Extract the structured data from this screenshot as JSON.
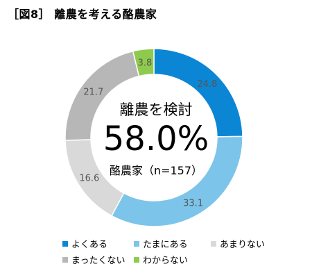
{
  "title": "［図8］ 離農を考える酪農家",
  "center": {
    "label": "離農を検討",
    "value": "58.0%",
    "sublabel": "酪農家（n=157）"
  },
  "chart_data": {
    "type": "pie",
    "donut": true,
    "categories": [
      "よくある",
      "たまにある",
      "あまりない",
      "まったくない",
      "わからない"
    ],
    "values": [
      24.8,
      33.1,
      16.6,
      21.7,
      3.8
    ],
    "colors": [
      "#0b86d4",
      "#7cc4ea",
      "#d9d9d9",
      "#b7b7b7",
      "#8fca4e"
    ],
    "data_labels": [
      "24.8",
      "33.1",
      "16.6",
      "21.7",
      "3.8"
    ],
    "legend_position": "bottom"
  }
}
